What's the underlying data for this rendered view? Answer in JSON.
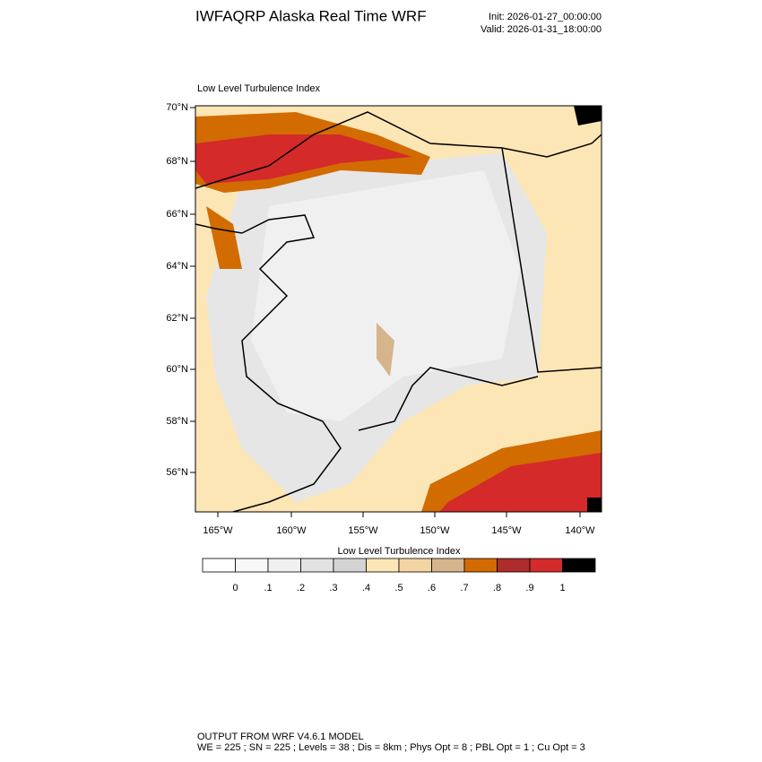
{
  "header": {
    "title": "IWFAQRP Alaska Real Time WRF",
    "init": "Init: 2026-01-27_00:00:00",
    "valid": "Valid: 2026-01-31_18:00:00"
  },
  "map": {
    "title": "Low Level Turbulence Index",
    "lat_labels": [
      "70°N",
      "68°N",
      "66°N",
      "64°N",
      "62°N",
      "60°N",
      "58°N",
      "56°N"
    ],
    "lon_labels": [
      "165°W",
      "160°W",
      "155°W",
      "150°W",
      "145°W",
      "140°W"
    ]
  },
  "colorbar": {
    "title": "Low Level Turbulence Index",
    "colors": [
      "#ffffff",
      "#f8f8f8",
      "#f0f0f0",
      "#e2e2e2",
      "#d4d4d4",
      "#fde6b6",
      "#f2d5a2",
      "#d6b48c",
      "#d26c00",
      "#ae2c2c",
      "#d42a2a",
      "#000000"
    ],
    "labels": [
      "0",
      ".1",
      ".2",
      ".3",
      ".4",
      ".5",
      ".6",
      ".7",
      ".8",
      ".9",
      "1"
    ]
  },
  "footer": {
    "line1": "OUTPUT FROM WRF V4.6.1 MODEL",
    "line2": "WE = 225 ; SN = 225 ; Levels = 38 ; Dis = 8km ; Phys Opt = 8 ; PBL Opt = 1 ; Cu Opt = 3"
  }
}
